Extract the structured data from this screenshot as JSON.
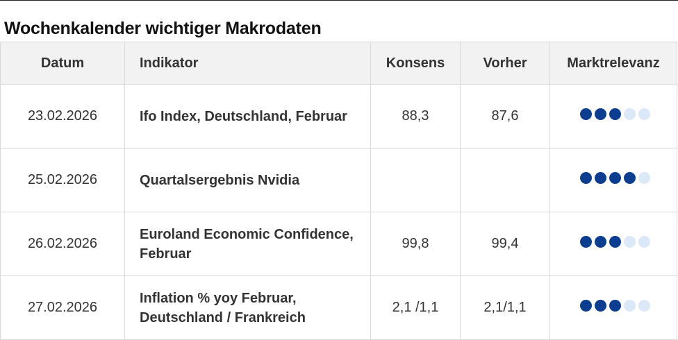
{
  "page": {
    "title": "Wochenkalender wichtiger Makrodaten"
  },
  "table": {
    "headers": {
      "date": "Datum",
      "indicator": "Indikator",
      "consensus": "Konsens",
      "previous": "Vorher",
      "relevance": "Marktrelevanz"
    },
    "rows": [
      {
        "date": "23.02.2026",
        "indicator": "Ifo Index, Deutschland, Februar",
        "consensus": "88,3",
        "previous": "87,6",
        "relevance": 3,
        "relevance_max": 5
      },
      {
        "date": "25.02.2026",
        "indicator": "Quartalsergebnis Nvidia",
        "consensus": "",
        "previous": "",
        "relevance": 4,
        "relevance_max": 5
      },
      {
        "date": "26.02.2026",
        "indicator": "Euroland Economic Confidence, Februar",
        "consensus": "99,8",
        "previous": "99,4",
        "relevance": 3,
        "relevance_max": 5
      },
      {
        "date": "27.02.2026",
        "indicator": "Inflation % yoy Februar, Deutschland / Frankreich",
        "consensus": "2,1 /1,1",
        "previous": "2,1/1,1",
        "relevance": 3,
        "relevance_max": 5
      }
    ]
  },
  "colors": {
    "dot_filled": "#0b3d91",
    "dot_empty": "#dbe8f7",
    "header_bg": "#f2f2f2",
    "border": "#d9d9d9"
  }
}
